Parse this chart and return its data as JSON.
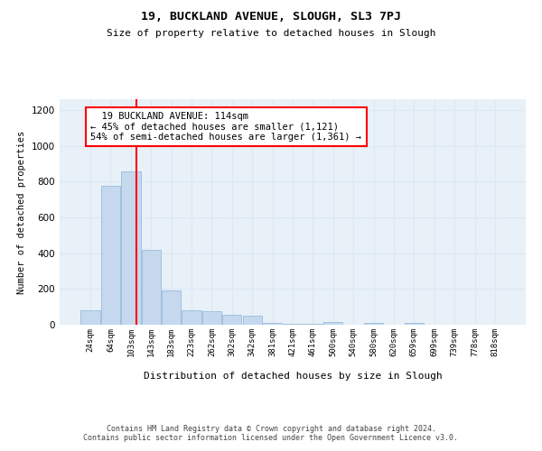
{
  "title1": "19, BUCKLAND AVENUE, SLOUGH, SL3 7PJ",
  "title2": "Size of property relative to detached houses in Slough",
  "xlabel": "Distribution of detached houses by size in Slough",
  "ylabel": "Number of detached properties",
  "categories": [
    "24sqm",
    "64sqm",
    "103sqm",
    "143sqm",
    "183sqm",
    "223sqm",
    "262sqm",
    "302sqm",
    "342sqm",
    "381sqm",
    "421sqm",
    "461sqm",
    "500sqm",
    "540sqm",
    "580sqm",
    "620sqm",
    "659sqm",
    "699sqm",
    "739sqm",
    "778sqm",
    "818sqm"
  ],
  "values": [
    80,
    778,
    855,
    420,
    190,
    80,
    75,
    55,
    50,
    10,
    5,
    5,
    15,
    0,
    12,
    0,
    12,
    0,
    0,
    0,
    0
  ],
  "bar_color": "#c5d8ee",
  "bar_edge_color": "#8ab4d8",
  "grid_color": "#dce8f5",
  "background_color": "#e8f0f8",
  "annotation_text": "  19 BUCKLAND AVENUE: 114sqm\n← 45% of detached houses are smaller (1,121)\n54% of semi-detached houses are larger (1,361) →",
  "footnote": "Contains HM Land Registry data © Crown copyright and database right 2024.\nContains public sector information licensed under the Open Government Licence v3.0.",
  "ylim": [
    0,
    1260
  ],
  "yticks": [
    0,
    200,
    400,
    600,
    800,
    1000,
    1200
  ]
}
